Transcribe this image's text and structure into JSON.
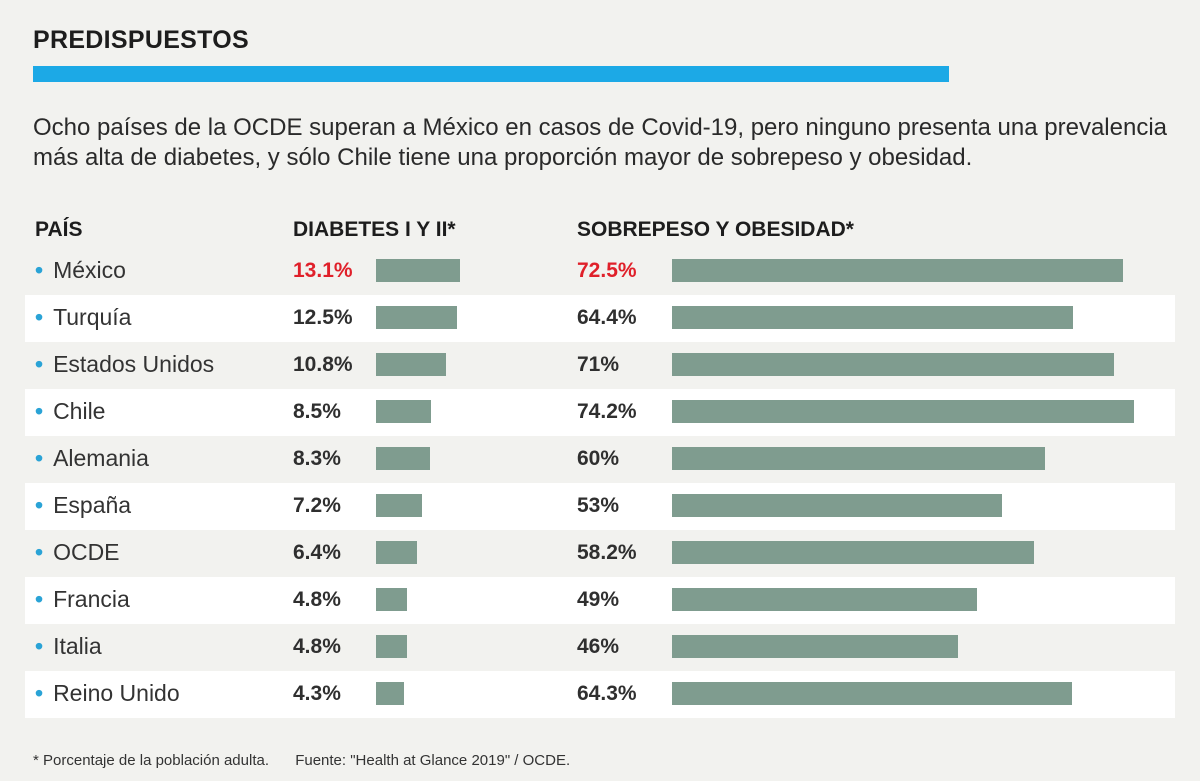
{
  "title": "PREDISPUESTOS",
  "intro": "Ocho países de la OCDE superan a México en casos de Covid-19, pero ninguno presenta una prevalencia más alta de diabetes, y sólo Chile tiene una proporción mayor de sobrepeso y obesidad.",
  "colors": {
    "accent": "#1ca9e6",
    "bar": "#7f9c8f",
    "highlight": "#e0202a",
    "bullet": "#2aa3d6"
  },
  "chart_data": {
    "type": "bar",
    "orientation": "horizontal",
    "column_headers": {
      "country": "PAÍS",
      "diabetes": "DIABETES I Y II*",
      "overweight": "SOBREPESO Y OBESIDAD*"
    },
    "categories": [
      "México",
      "Turquía",
      "Estados Unidos",
      "Chile",
      "Alemania",
      "España",
      "OCDE",
      "Francia",
      "Italia",
      "Reino Unido"
    ],
    "series": [
      {
        "name": "DIABETES I Y II*",
        "values": [
          13.1,
          12.5,
          10.8,
          8.5,
          8.3,
          7.2,
          6.4,
          4.8,
          4.8,
          4.3
        ],
        "labels": [
          "13.1%",
          "12.5%",
          "10.8%",
          "8.5%",
          "8.3%",
          "7.2%",
          "6.4%",
          "4.8%",
          "4.8%",
          "4.3%"
        ]
      },
      {
        "name": "SOBREPESO Y OBESIDAD*",
        "values": [
          72.5,
          64.4,
          71,
          74.2,
          60,
          53,
          58.2,
          49,
          46,
          64.3
        ],
        "labels": [
          "72.5%",
          "64.4%",
          "71%",
          "74.2%",
          "60%",
          "53%",
          "58.2%",
          "49%",
          "46%",
          "64.3%"
        ]
      }
    ],
    "highlight_category": "México"
  },
  "footnote": {
    "note": "* Porcentaje de la población adulta.",
    "source": "Fuente: \"Health at Glance 2019\" / OCDE."
  }
}
